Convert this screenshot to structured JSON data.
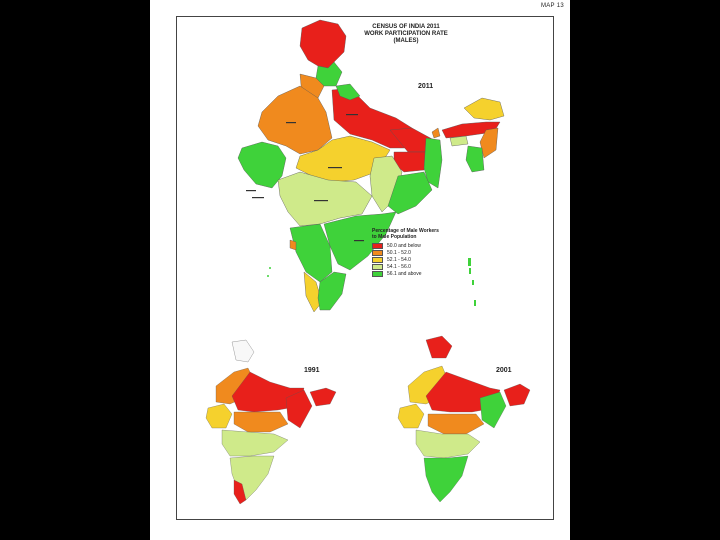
{
  "map": {
    "map_number": "MAP 13",
    "title_lines": [
      "CENSUS OF INDIA 2011",
      "WORK PARTICIPATION RATE",
      "(MALES)"
    ],
    "main_year": "2011",
    "inset_years": [
      "1991",
      "2001"
    ],
    "legend": {
      "title_lines": [
        "Percentage of Male Workers",
        "to Male Population"
      ],
      "items": [
        {
          "label": "50.0 and below",
          "color": "#e8201b"
        },
        {
          "label": "50.1 - 52.0",
          "color": "#f08a1e"
        },
        {
          "label": "52.1 - 54.0",
          "color": "#f5d12d"
        },
        {
          "label": "54.1 - 56.0",
          "color": "#cfea8a"
        },
        {
          "label": "56.1 and above",
          "color": "#3fd23a"
        }
      ]
    }
  }
}
